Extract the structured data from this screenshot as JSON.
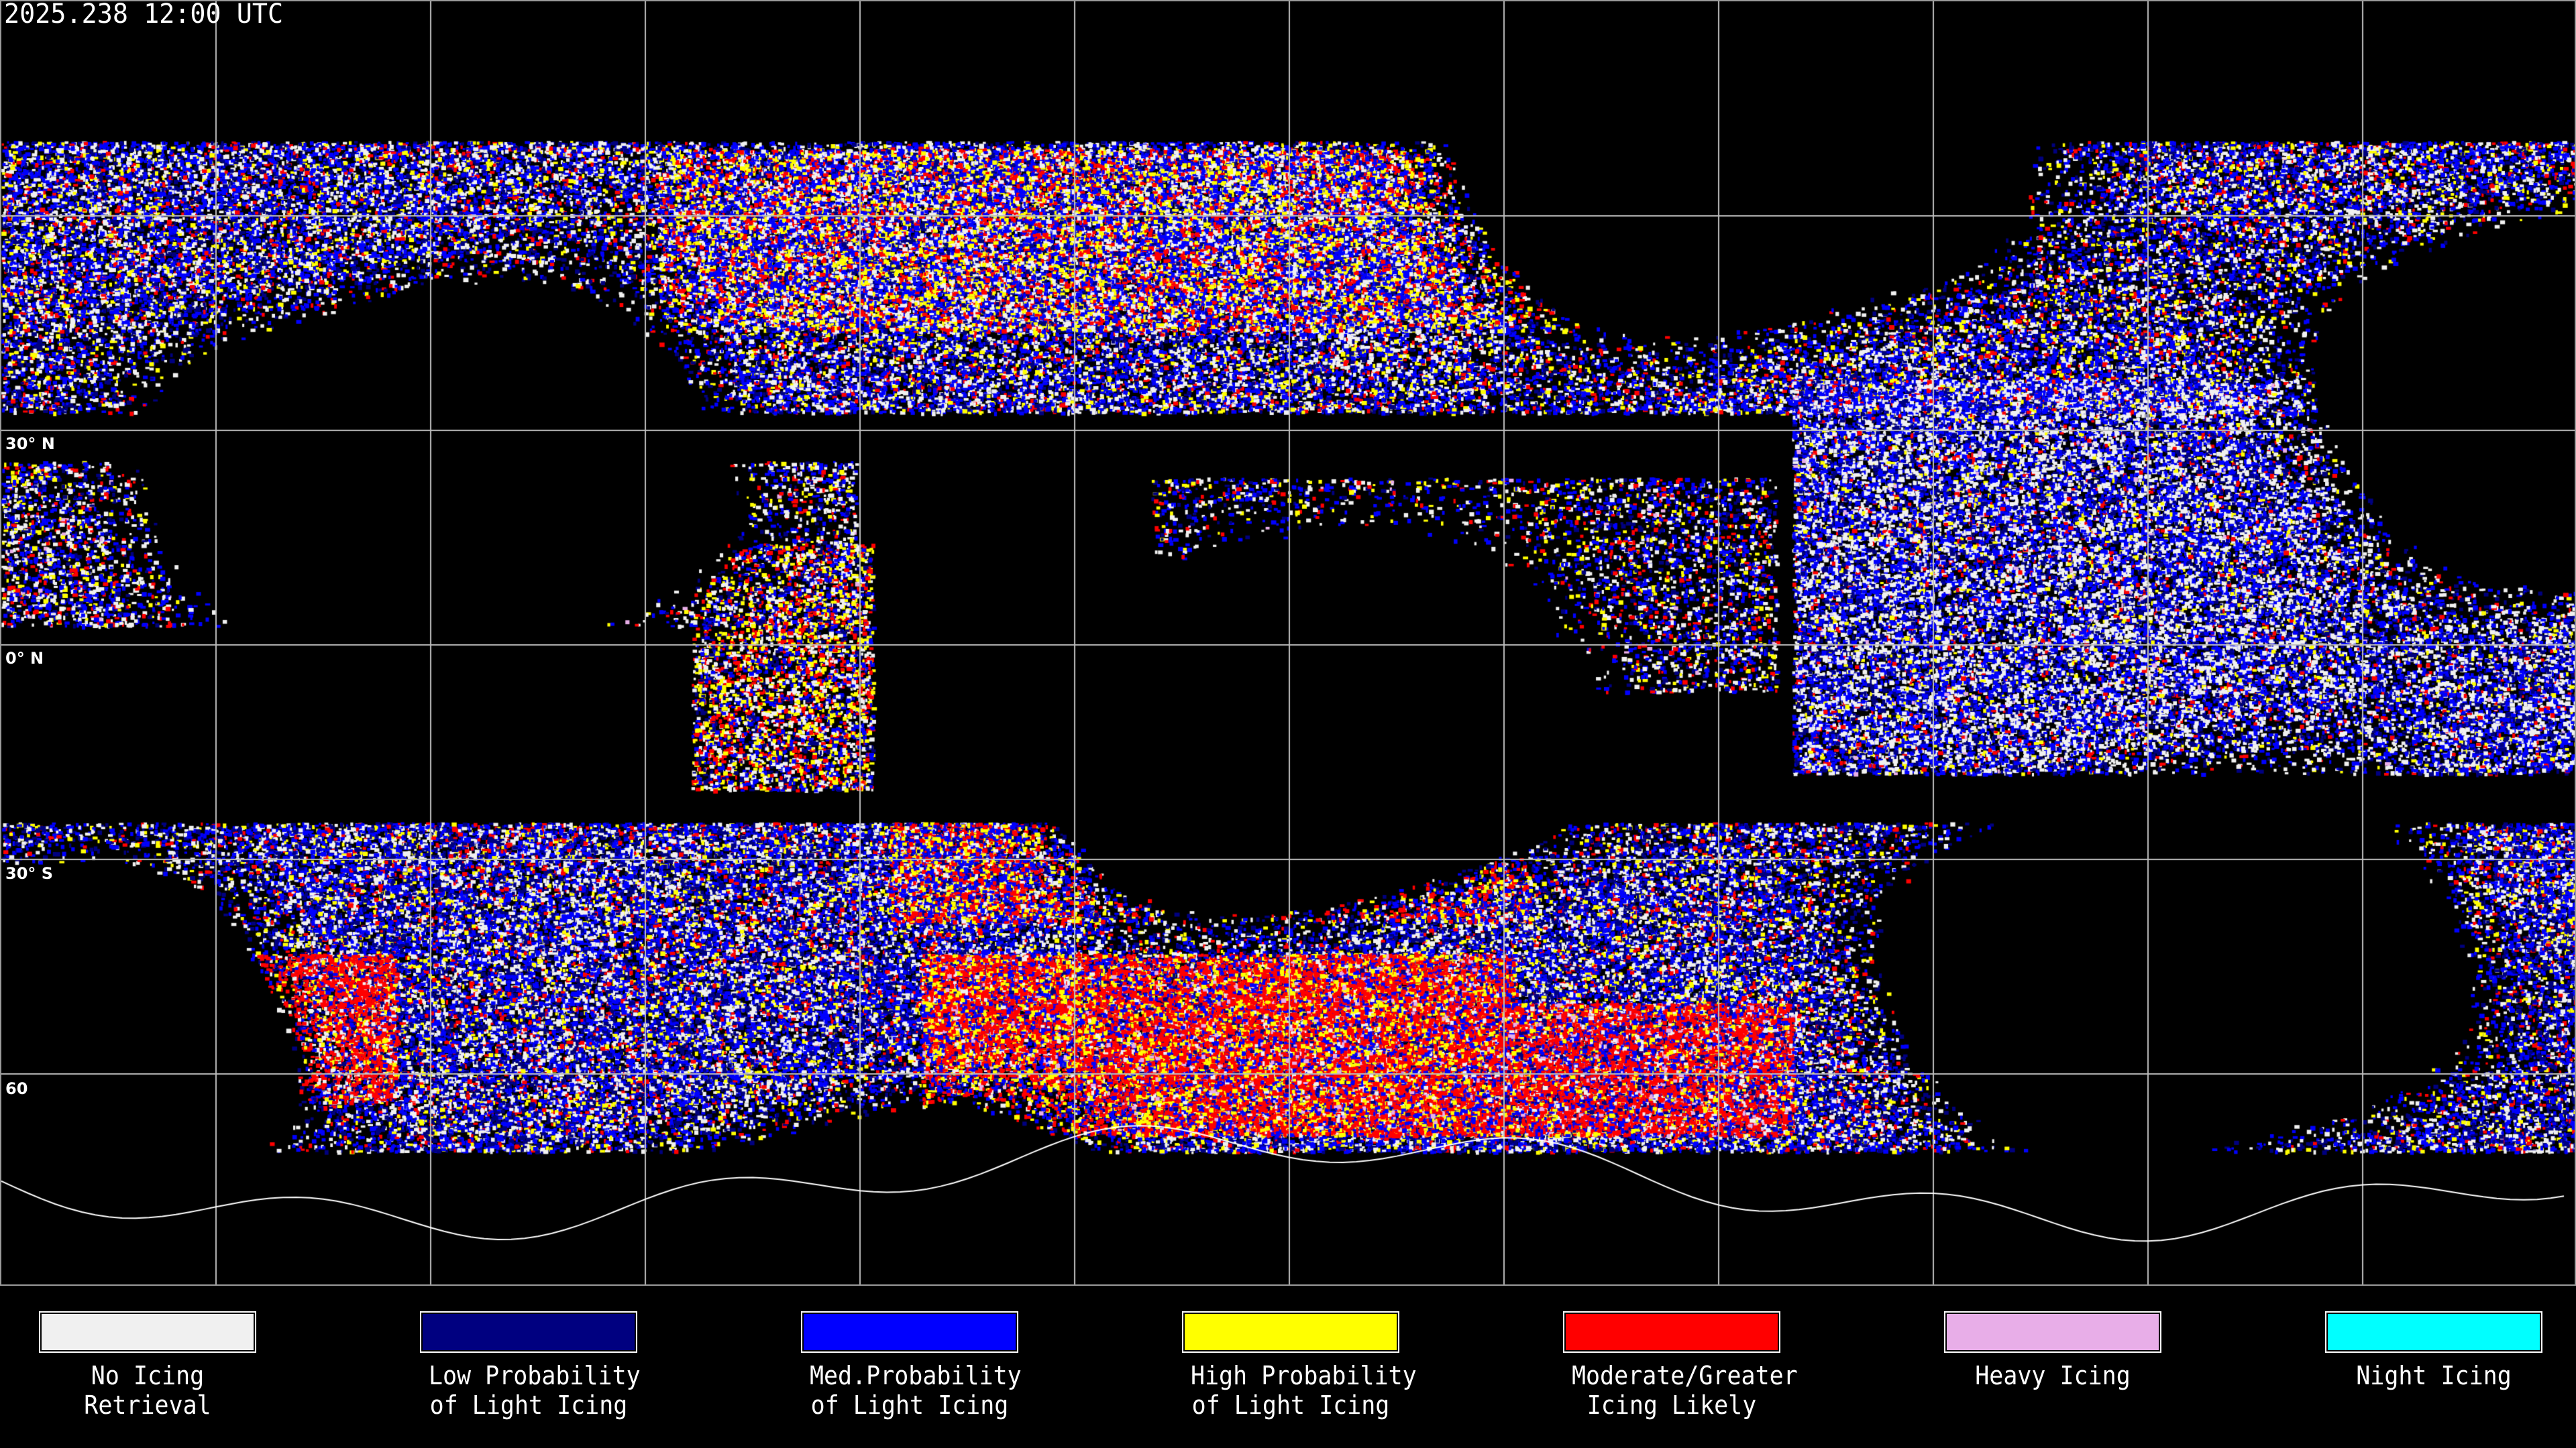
{
  "header": {
    "timestamp": "2025.238 12:00 UTC"
  },
  "map": {
    "projection": "equirectangular",
    "graticule_spacing_deg": 30,
    "latitude_labels": [
      "30° N",
      "0° N",
      "30° S",
      "60"
    ]
  },
  "legend": [
    {
      "line1": "No Icing",
      "line2": "Retrieval",
      "color": "#f0f0f0"
    },
    {
      "line1": "Low Probability",
      "line2": "of Light Icing",
      "color": "#000080"
    },
    {
      "line1": "Med.Probability",
      "line2": "of Light Icing",
      "color": "#0000ff"
    },
    {
      "line1": "High Probability",
      "line2": "of Light Icing",
      "color": "#ffff00"
    },
    {
      "line1": "Moderate/Greater",
      "line2": "Icing Likely",
      "color": "#ff0000"
    },
    {
      "line1": "Heavy Icing",
      "line2": "",
      "color": "#e8aee8"
    },
    {
      "line1": "Night Icing",
      "line2": "",
      "color": "#00ffff"
    }
  ]
}
